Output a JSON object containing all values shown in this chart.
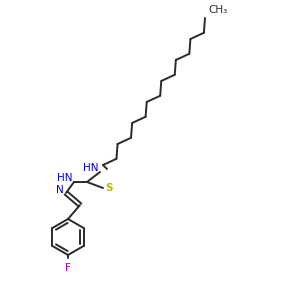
{
  "background_color": "#ffffff",
  "line_color": "#2a2a2a",
  "bond_color": "#2a2a2a",
  "nh_color": "#0000dd",
  "s_color": "#bbbb00",
  "f_color": "#bb00bb",
  "n_color": "#0000dd",
  "line_width": 1.4,
  "font_size": 7.5,
  "ch3_label": "CH₃",
  "nh_label": "HN",
  "s_label": "S",
  "n_label": "N",
  "f_label": "F"
}
